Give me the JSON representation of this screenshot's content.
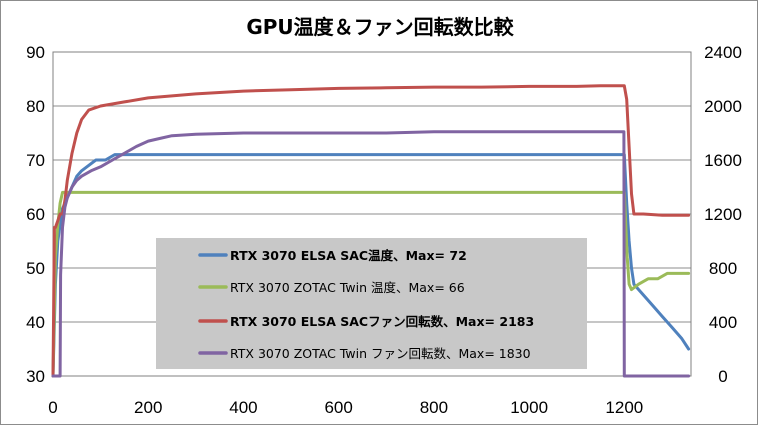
{
  "chart_data": {
    "type": "line",
    "title": "GPU温度＆ファン回転数比較",
    "xlabel": "",
    "ylabel_left": "",
    "ylabel_right": "",
    "xlim": [
      0,
      1340
    ],
    "ylim_left": [
      30,
      90
    ],
    "ylim_right": [
      0,
      2400
    ],
    "x_ticks": [
      0,
      200,
      400,
      600,
      800,
      1000,
      1200
    ],
    "y_left_ticks": [
      30,
      40,
      50,
      60,
      70,
      80,
      90
    ],
    "y_right_ticks": [
      0,
      400,
      800,
      1200,
      1600,
      2000,
      2400
    ],
    "grid": "horizontal",
    "legend_position": "center-left",
    "legend_background": "#c8c8c8",
    "series": [
      {
        "name": "RTX 3070 ELSA SAC温度、Max= 72",
        "axis": "left",
        "color": "#4f81bd",
        "bold_label": true,
        "x": [
          0,
          5,
          10,
          15,
          20,
          25,
          30,
          35,
          40,
          45,
          50,
          60,
          75,
          90,
          110,
          130,
          150,
          170,
          200,
          240,
          300,
          400,
          500,
          600,
          700,
          800,
          900,
          1000,
          1100,
          1150,
          1200,
          1205,
          1210,
          1215,
          1220,
          1240,
          1260,
          1280,
          1300,
          1320,
          1335
        ],
        "y": [
          30,
          47,
          55,
          58,
          61,
          62,
          63,
          64,
          65,
          66,
          67,
          68,
          69,
          70,
          70,
          71,
          71,
          71,
          71,
          71,
          71,
          71,
          71,
          71,
          71,
          71,
          71,
          71,
          71,
          71,
          71,
          62,
          55,
          50,
          47,
          45,
          43,
          41,
          39,
          37,
          35
        ]
      },
      {
        "name": "RTX 3070 ZOTAC Twin 温度、Max= 66",
        "axis": "left",
        "color": "#9bbb59",
        "bold_label": false,
        "x": [
          0,
          5,
          10,
          15,
          20,
          25,
          30,
          40,
          60,
          100,
          200,
          300,
          400,
          500,
          600,
          700,
          800,
          900,
          1000,
          1100,
          1150,
          1200,
          1202,
          1206,
          1210,
          1215,
          1230,
          1250,
          1270,
          1290,
          1300,
          1335
        ],
        "y": [
          30,
          52,
          58,
          62,
          64,
          64,
          64,
          64,
          64,
          64,
          64,
          64,
          64,
          64,
          64,
          64,
          64,
          64,
          64,
          64,
          64,
          64,
          60,
          52,
          47,
          46,
          47,
          48,
          48,
          49,
          49,
          49
        ]
      },
      {
        "name": "RTX 3070 ELSA SACファン回転数、Max= 2183",
        "axis": "right",
        "color": "#c0504d",
        "bold_label": true,
        "x": [
          0,
          3,
          5,
          10,
          15,
          20,
          25,
          30,
          40,
          50,
          60,
          75,
          100,
          150,
          200,
          300,
          400,
          500,
          600,
          700,
          800,
          900,
          1000,
          1100,
          1150,
          1180,
          1200,
          1205,
          1210,
          1215,
          1220,
          1240,
          1280,
          1300,
          1335
        ],
        "y": [
          0,
          1100,
          1100,
          1150,
          1200,
          1200,
          1300,
          1450,
          1650,
          1800,
          1900,
          1970,
          2000,
          2030,
          2060,
          2090,
          2110,
          2120,
          2130,
          2135,
          2140,
          2140,
          2145,
          2145,
          2150,
          2150,
          2150,
          2050,
          1700,
          1350,
          1200,
          1200,
          1190,
          1190,
          1190
        ]
      },
      {
        "name": "RTX 3070 ZOTAC Twin ファン回転数、Max= 1830",
        "axis": "right",
        "color": "#8064a2",
        "bold_label": false,
        "x": [
          0,
          15,
          16,
          20,
          25,
          30,
          40,
          50,
          60,
          80,
          100,
          125,
          150,
          175,
          200,
          225,
          250,
          300,
          400,
          500,
          600,
          700,
          800,
          900,
          1000,
          1100,
          1150,
          1198,
          1199,
          1200,
          1210,
          1300,
          1335
        ],
        "y": [
          0,
          0,
          750,
          1100,
          1250,
          1320,
          1400,
          1450,
          1480,
          1520,
          1550,
          1600,
          1650,
          1700,
          1740,
          1760,
          1780,
          1790,
          1800,
          1800,
          1800,
          1800,
          1810,
          1810,
          1810,
          1810,
          1810,
          1810,
          1810,
          0,
          0,
          0,
          0
        ]
      }
    ]
  }
}
